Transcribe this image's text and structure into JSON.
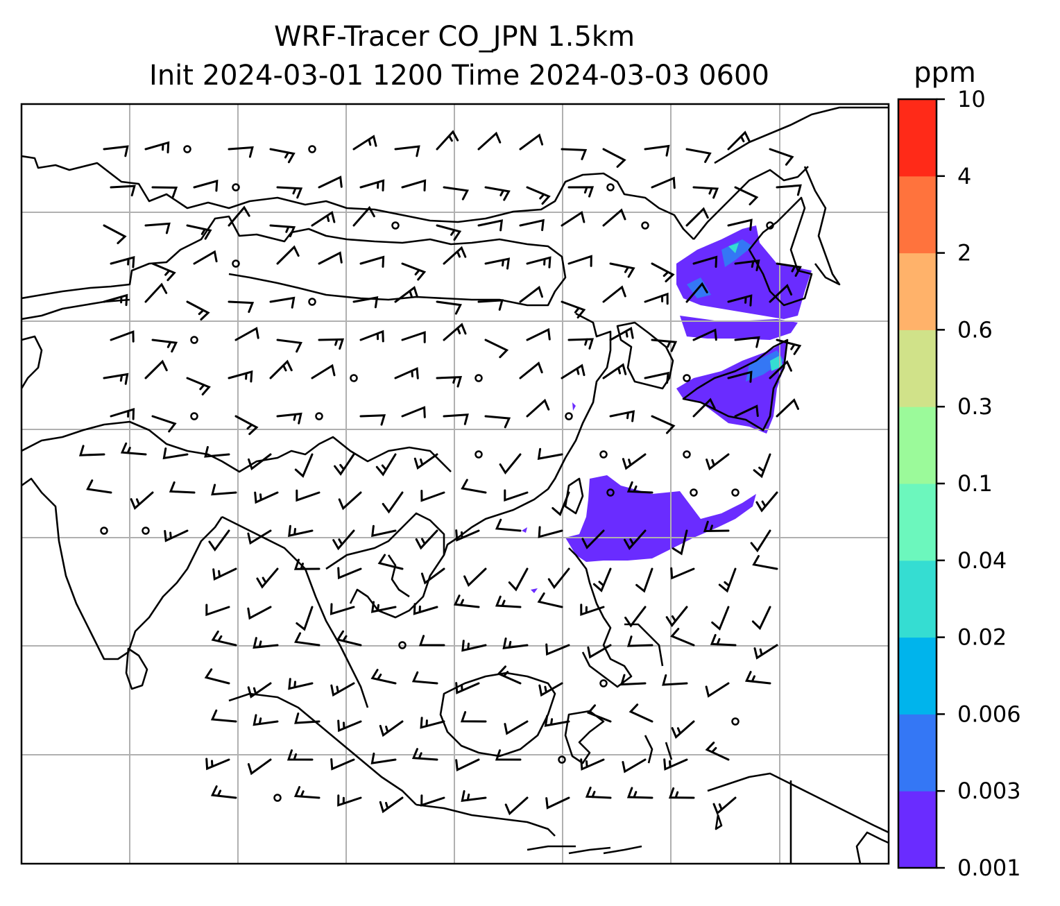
{
  "title_line1": "WRF-Tracer CO_JPN 1.5km",
  "title_line2": "Init 2024-03-01 1200 Time 2024-03-03 0600",
  "colorbar": {
    "unit": "ppm",
    "tick_labels": [
      "0.001",
      "0.003",
      "0.006",
      "0.02",
      "0.04",
      "0.1",
      "0.3",
      "0.6",
      "2",
      "4",
      "10"
    ],
    "colors": [
      "#6a2cff",
      "#3477f5",
      "#00b4ec",
      "#35ddd2",
      "#6cf7bd",
      "#9bfa9a",
      "#d0e289",
      "#ffb26a",
      "#ff733d",
      "#ff2a18"
    ]
  },
  "layers": {
    "field": "CO tracer concentration (ppm)",
    "wind": "wind barbs",
    "basemap": "coastlines, borders, gridlines"
  }
}
